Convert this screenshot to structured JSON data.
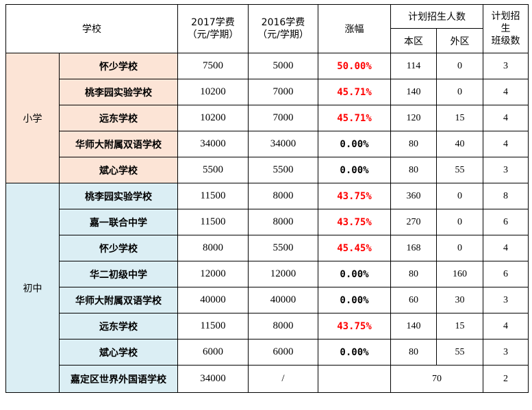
{
  "headers": {
    "school": "学校",
    "fee2017": [
      "2017学费",
      "（元/学期）"
    ],
    "fee2016": [
      "2016学费",
      "（元/学期）"
    ],
    "increase": "涨幅",
    "plan": "计划招生人数",
    "local": "本区",
    "outside": "外区",
    "classes": [
      "计划招",
      "生",
      "班级数"
    ]
  },
  "groups": [
    {
      "name": "小学",
      "rows": [
        {
          "school": "怀少学校",
          "fee2017": "7500",
          "fee2016": "5000",
          "increase": "50.00%",
          "local": "114",
          "outside": "0",
          "classes": "3"
        },
        {
          "school": "桃李园实验学校",
          "fee2017": "10200",
          "fee2016": "7000",
          "increase": "45.71%",
          "local": "140",
          "outside": "0",
          "classes": "4"
        },
        {
          "school": "远东学校",
          "fee2017": "10200",
          "fee2016": "7000",
          "increase": "45.71%",
          "local": "120",
          "outside": "15",
          "classes": "4"
        },
        {
          "school": "华师大附属双语学校",
          "fee2017": "34000",
          "fee2016": "34000",
          "increase": "0.00%",
          "local": "80",
          "outside": "40",
          "classes": "4"
        },
        {
          "school": "斌心学校",
          "fee2017": "5500",
          "fee2016": "5500",
          "increase": "0.00%",
          "local": "80",
          "outside": "55",
          "classes": "3"
        }
      ]
    },
    {
      "name": "初中",
      "rows": [
        {
          "school": "桃李园实验学校",
          "fee2017": "11500",
          "fee2016": "8000",
          "increase": "43.75%",
          "local": "360",
          "outside": "0",
          "classes": "8"
        },
        {
          "school": "嘉一联合中学",
          "fee2017": "11500",
          "fee2016": "8000",
          "increase": "43.75%",
          "local": "270",
          "outside": "0",
          "classes": "6"
        },
        {
          "school": "怀少学校",
          "fee2017": "8000",
          "fee2016": "5500",
          "increase": "45.45%",
          "local": "168",
          "outside": "0",
          "classes": "4"
        },
        {
          "school": "华二初级中学",
          "fee2017": "12000",
          "fee2016": "12000",
          "increase": "0.00%",
          "local": "80",
          "outside": "160",
          "classes": "6"
        },
        {
          "school": "华师大附属双语学校",
          "fee2017": "40000",
          "fee2016": "40000",
          "increase": "0.00%",
          "local": "60",
          "outside": "30",
          "classes": "3"
        },
        {
          "school": "远东学校",
          "fee2017": "11500",
          "fee2016": "8000",
          "increase": "43.75%",
          "local": "140",
          "outside": "15",
          "classes": "4"
        },
        {
          "school": "斌心学校",
          "fee2017": "6000",
          "fee2016": "6000",
          "increase": "0.00%",
          "local": "80",
          "outside": "55",
          "classes": "3"
        }
      ],
      "last": {
        "school": "嘉定区世界外国语学校",
        "fee2017": "34000",
        "fee2016": "/",
        "increase": "",
        "plan_total": "70",
        "classes": "2"
      }
    }
  ],
  "colors": {
    "primary_bg": "#fce4d6",
    "junior_bg": "#dbeef4",
    "increase_text": "#ff0000"
  }
}
